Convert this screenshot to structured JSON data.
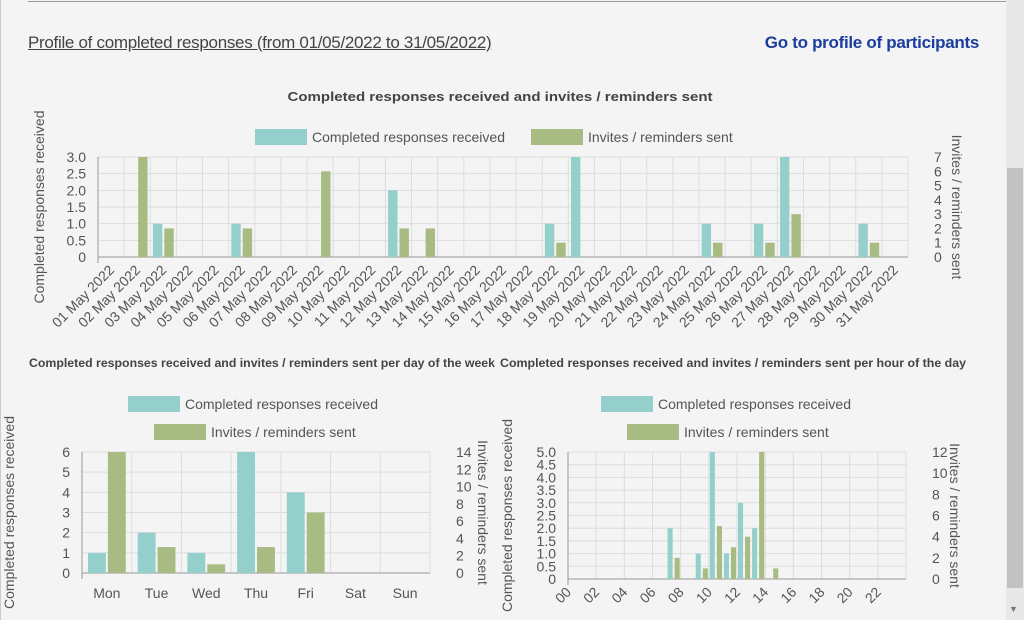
{
  "header": {
    "profile_link": "Profile of completed responses (from 01/05/2022 to 31/05/2022)",
    "participants_link": "Go to profile of participants"
  },
  "colors": {
    "completed": "#94cfcc",
    "invites": "#a7bb82",
    "grid": "#dddddd",
    "axis": "#999999"
  },
  "chart_data": [
    {
      "type": "bar",
      "title": "Completed responses received and invites / reminders sent",
      "legend": [
        "Completed responses received",
        "Invites / reminders sent"
      ],
      "ylabel": "Completed responses received",
      "y2label": "Invites / reminders sent",
      "ylim": [
        0,
        3
      ],
      "y2lim": [
        0,
        7
      ],
      "yticks": [
        "0",
        "0.5",
        "1.0",
        "1.5",
        "2.0",
        "2.5",
        "3.0"
      ],
      "y2ticks": [
        "0",
        "1",
        "2",
        "3",
        "4",
        "5",
        "6",
        "7"
      ],
      "categories": [
        "01 May 2022",
        "02 May 2022",
        "03 May 2022",
        "04 May 2022",
        "05 May 2022",
        "06 May 2022",
        "07 May 2022",
        "08 May 2022",
        "09 May 2022",
        "10 May 2022",
        "11 May 2022",
        "12 May 2022",
        "13 May 2022",
        "14 May 2022",
        "15 May 2022",
        "16 May 2022",
        "17 May 2022",
        "18 May 2022",
        "19 May 2022",
        "20 May 2022",
        "21 May 2022",
        "22 May 2022",
        "23 May 2022",
        "24 May 2022",
        "25 May 2022",
        "26 May 2022",
        "27 May 2022",
        "28 May 2022",
        "29 May 2022",
        "30 May 2022",
        "31 May 2022"
      ],
      "series": [
        {
          "name": "Completed responses received",
          "values": [
            0,
            0,
            1,
            0,
            0,
            1,
            0,
            0,
            0,
            0,
            0,
            2,
            0,
            0,
            0,
            0,
            0,
            1,
            3,
            0,
            0,
            0,
            0,
            1,
            0,
            1,
            3,
            0,
            0,
            1,
            0
          ]
        },
        {
          "name": "Invites / reminders sent",
          "values": [
            0,
            7,
            2,
            0,
            0,
            2,
            0,
            0,
            6,
            0,
            0,
            2,
            2,
            0,
            0,
            0,
            0,
            1,
            0,
            0,
            0,
            0,
            0,
            1,
            0,
            1,
            3,
            0,
            0,
            1,
            0
          ]
        }
      ]
    },
    {
      "type": "bar",
      "title": "Completed responses received and invites / reminders sent per day of the week",
      "legend": [
        "Completed responses received",
        "Invites / reminders sent"
      ],
      "ylabel": "Completed responses received",
      "y2label": "Invites / reminders sent",
      "ylim": [
        0,
        6
      ],
      "y2lim": [
        0,
        14
      ],
      "yticks": [
        "0",
        "1",
        "2",
        "3",
        "4",
        "5",
        "6"
      ],
      "y2ticks": [
        "0",
        "2",
        "4",
        "6",
        "8",
        "10",
        "12",
        "14"
      ],
      "categories": [
        "Mon",
        "Tue",
        "Wed",
        "Thu",
        "Fri",
        "Sat",
        "Sun"
      ],
      "series": [
        {
          "name": "Completed responses received",
          "values": [
            1,
            2,
            1,
            6,
            4,
            0,
            0
          ]
        },
        {
          "name": "Invites / reminders sent",
          "values": [
            14,
            3,
            1,
            3,
            7,
            0,
            0
          ]
        }
      ]
    },
    {
      "type": "bar",
      "title": "Completed responses received and invites / reminders sent per hour of the day",
      "legend": [
        "Completed responses received",
        "Invites / reminders sent"
      ],
      "ylabel": "Completed responses received",
      "y2label": "Invites / reminders sent",
      "ylim": [
        0,
        5
      ],
      "y2lim": [
        0,
        12
      ],
      "yticks": [
        "0",
        "0.5",
        "1.0",
        "1.5",
        "2.0",
        "2.5",
        "3.0",
        "3.5",
        "4.0",
        "4.5",
        "5.0"
      ],
      "y2ticks": [
        "0",
        "2",
        "4",
        "6",
        "8",
        "10",
        "12"
      ],
      "categories": [
        "00",
        "01",
        "02",
        "03",
        "04",
        "05",
        "06",
        "07",
        "08",
        "09",
        "10",
        "11",
        "12",
        "13",
        "14",
        "15",
        "16",
        "17",
        "18",
        "19",
        "20",
        "21",
        "22",
        "23"
      ],
      "xticks_shown": [
        "00",
        "02",
        "04",
        "06",
        "08",
        "10",
        "12",
        "14",
        "16",
        "18",
        "20",
        "22"
      ],
      "series": [
        {
          "name": "Completed responses received",
          "values": [
            0,
            0,
            0,
            0,
            0,
            0,
            0,
            2,
            0,
            1,
            5,
            1,
            3,
            2,
            0,
            0,
            0,
            0,
            0,
            0,
            0,
            0,
            0,
            0
          ]
        },
        {
          "name": "Invites / reminders sent",
          "values": [
            0,
            0,
            0,
            0,
            0,
            0,
            0,
            2,
            0,
            1,
            5,
            3,
            4,
            12,
            1,
            0,
            0,
            0,
            0,
            0,
            0,
            0,
            0,
            0
          ]
        }
      ]
    }
  ]
}
